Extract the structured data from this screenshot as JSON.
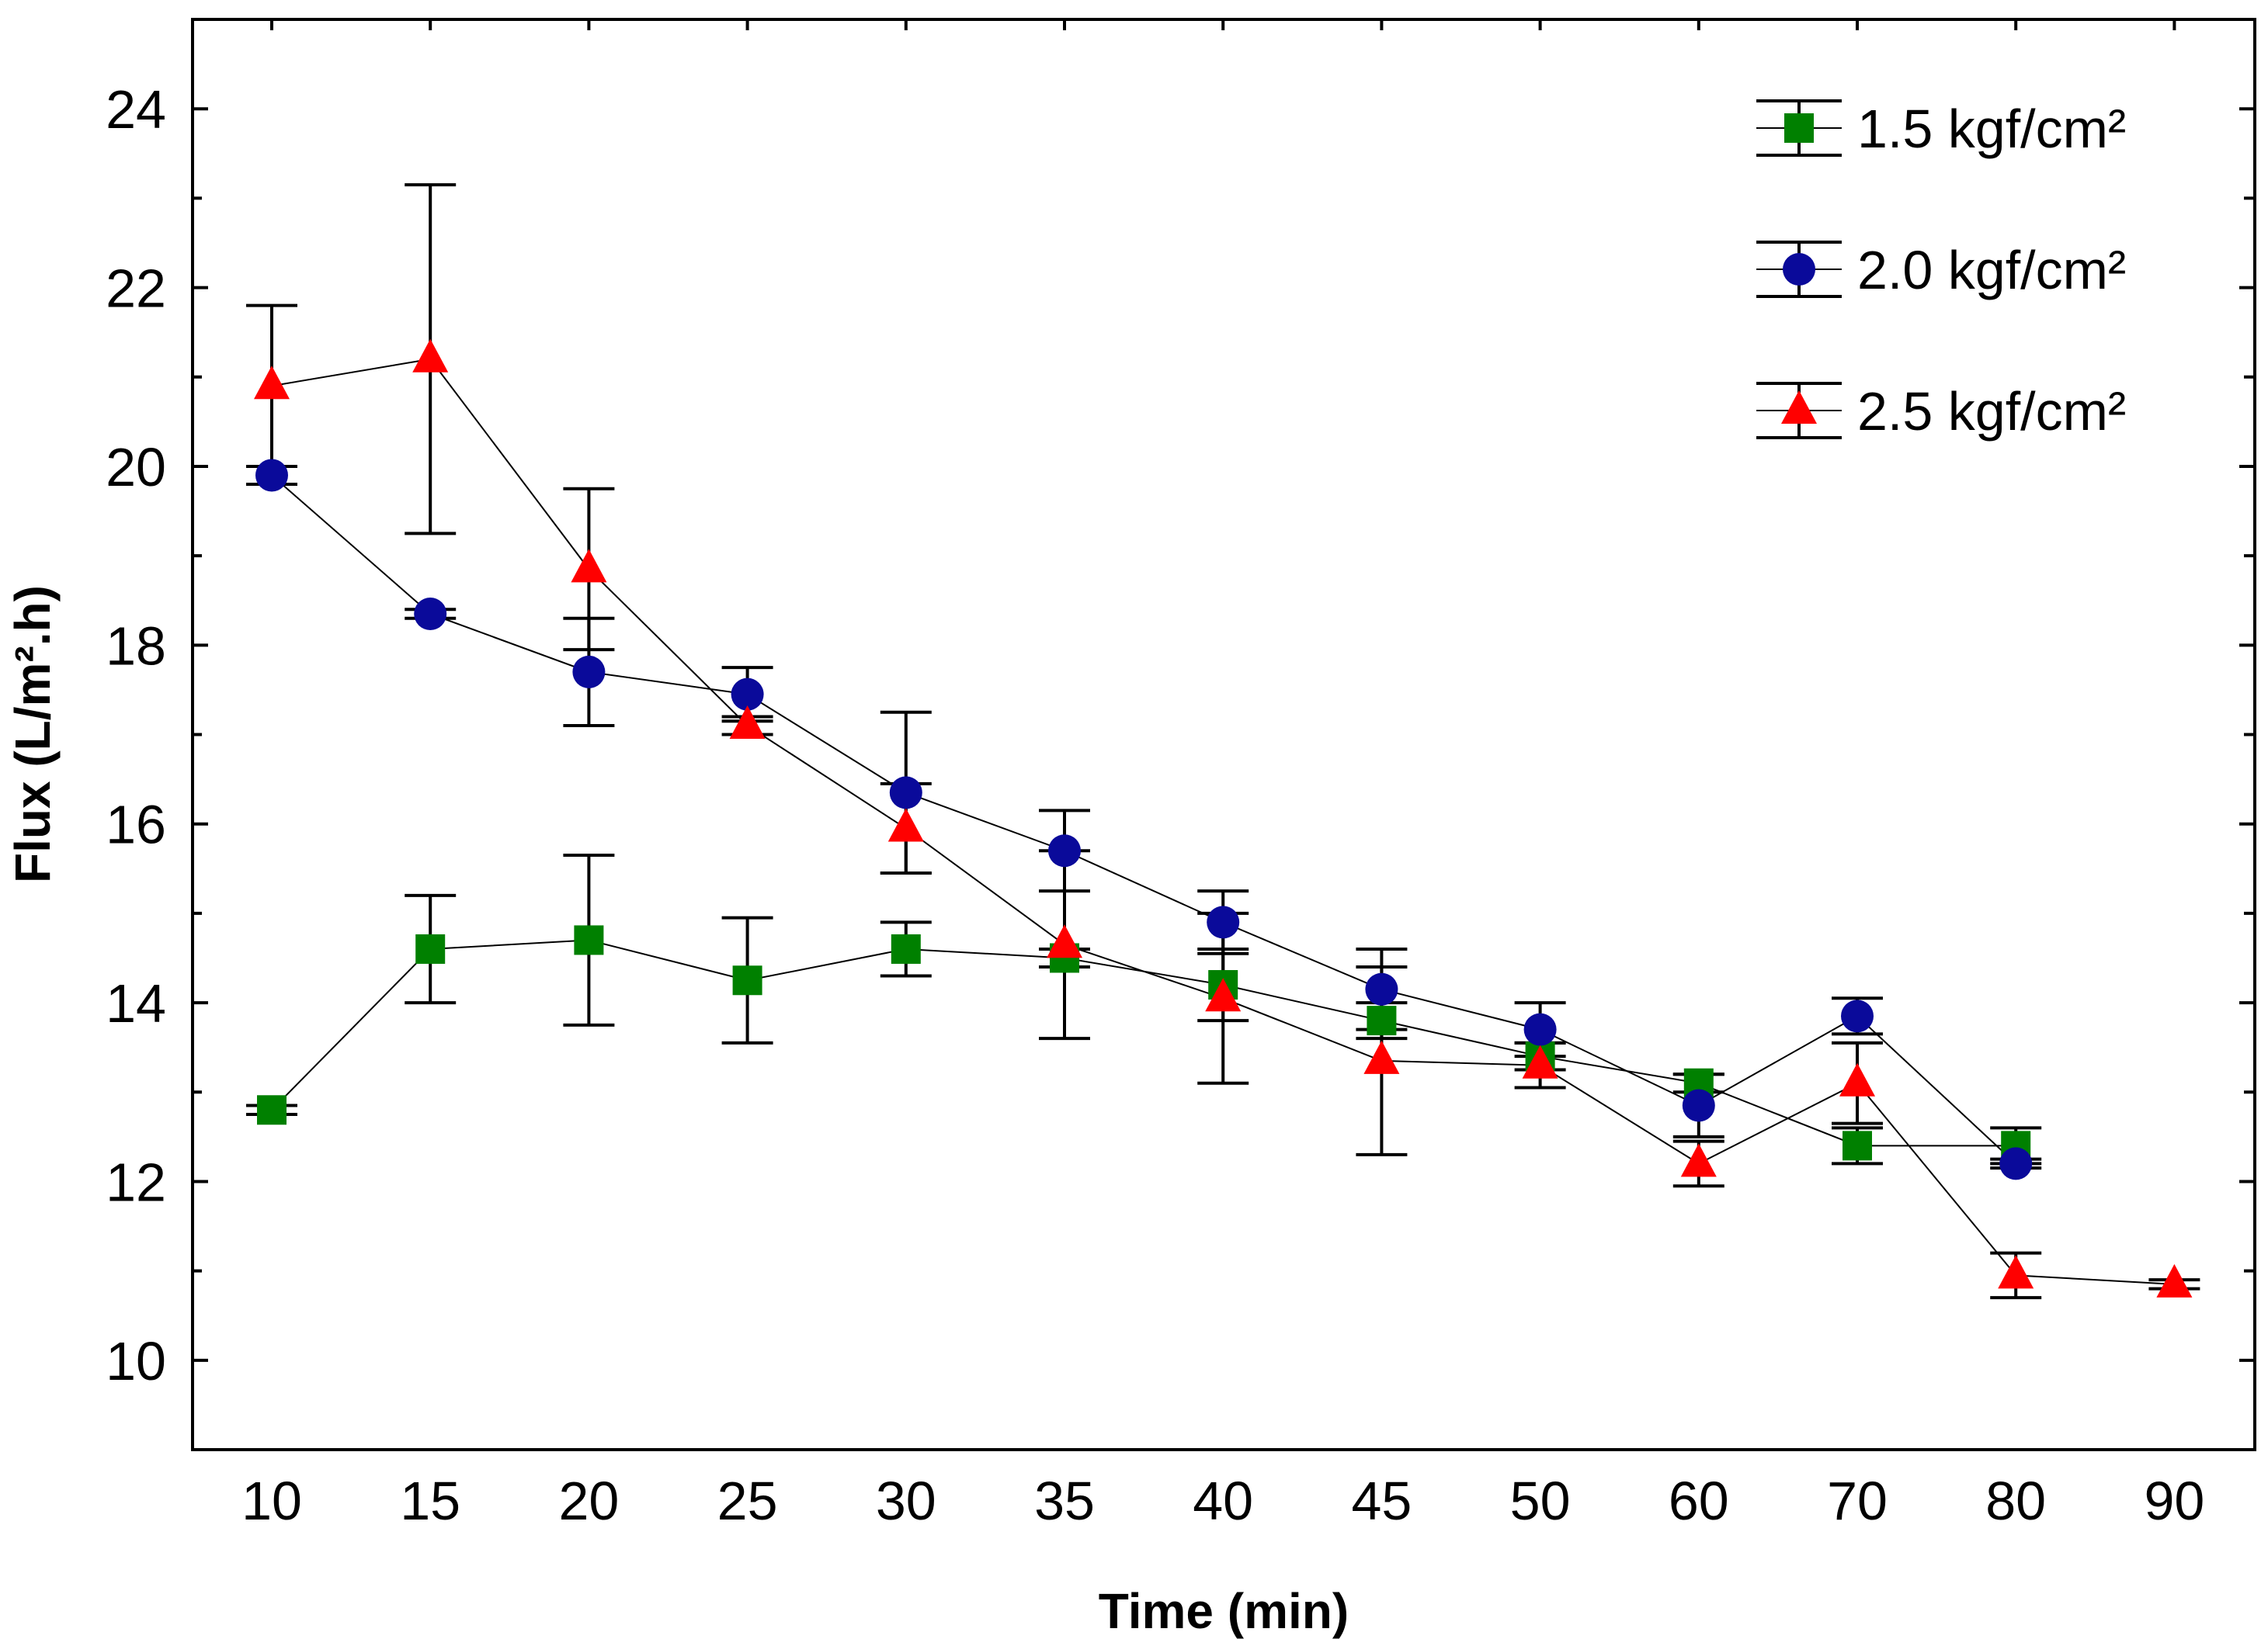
{
  "chart_data": {
    "type": "line",
    "title": "",
    "xlabel": "Time (min)",
    "ylabel": "Flux (L/m².h)",
    "categories": [
      "10",
      "15",
      "20",
      "25",
      "30",
      "35",
      "40",
      "45",
      "50",
      "60",
      "70",
      "80",
      "90"
    ],
    "ylim": [
      9,
      25
    ],
    "yticks": [
      10,
      12,
      14,
      16,
      18,
      20,
      22,
      24
    ],
    "grid": false,
    "legend_position": "top-right",
    "series": [
      {
        "name": "1.5 kgf/cm²",
        "marker": "square",
        "color": "#008000",
        "values": [
          12.8,
          14.6,
          14.7,
          14.25,
          14.6,
          14.5,
          14.2,
          13.8,
          13.4,
          13.1,
          12.4,
          12.4,
          null
        ],
        "errors": [
          0.05,
          0.6,
          0.95,
          0.7,
          0.3,
          0.1,
          0.4,
          0.2,
          0.15,
          0.1,
          0.2,
          0.2,
          null
        ]
      },
      {
        "name": "2.0 kgf/cm²",
        "marker": "circle",
        "color": "#0a0a9a",
        "values": [
          19.9,
          18.35,
          17.7,
          17.45,
          16.35,
          15.7,
          14.9,
          14.15,
          13.7,
          12.85,
          13.85,
          12.2,
          null
        ],
        "errors": [
          0.1,
          0.05,
          0.6,
          0.3,
          0.9,
          0.45,
          0.35,
          0.45,
          0.3,
          0.35,
          0.2,
          0.05,
          null
        ]
      },
      {
        "name": "2.5 kgf/cm²",
        "marker": "triangle",
        "color": "#ff0000",
        "values": [
          20.9,
          21.2,
          18.85,
          17.1,
          15.95,
          14.65,
          14.05,
          13.35,
          13.3,
          12.2,
          13.1,
          10.95,
          10.85
        ],
        "errors": [
          0.9,
          1.95,
          0.9,
          0.1,
          0.5,
          1.05,
          0.95,
          1.05,
          0.25,
          0.25,
          0.45,
          0.25,
          0.05
        ]
      }
    ]
  }
}
